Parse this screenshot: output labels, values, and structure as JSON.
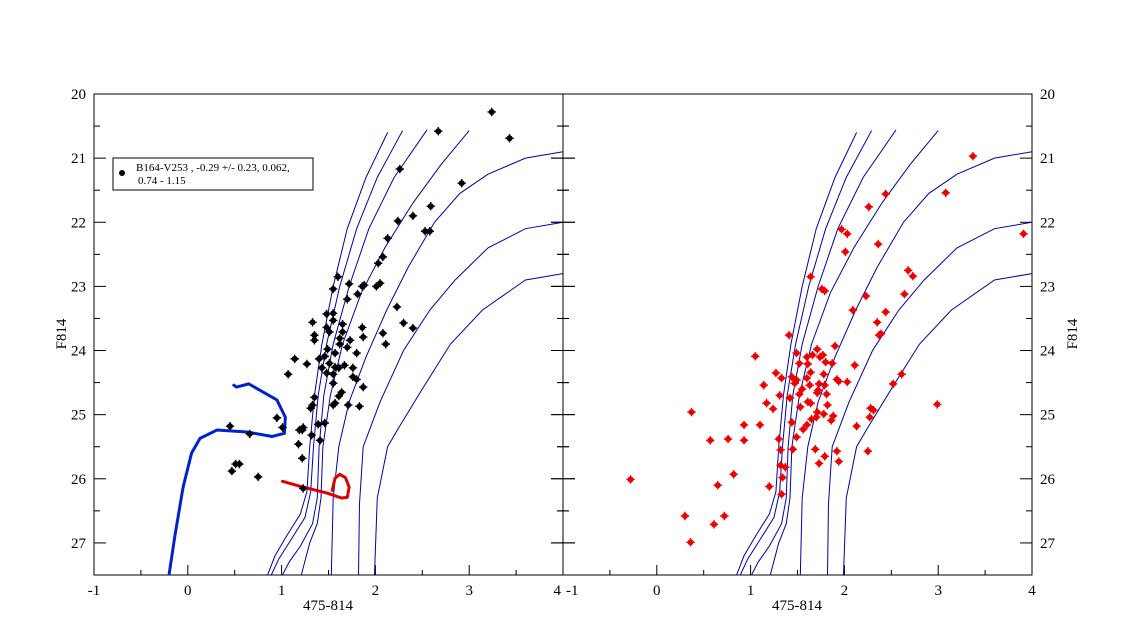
{
  "chart_data": [
    {
      "type": "scatter",
      "panel": "left",
      "xlabel": "475-814",
      "ylabel": "F814",
      "xlim": [
        -1,
        4
      ],
      "ylim": [
        27.5,
        20
      ],
      "y_inverted": true,
      "xticks": [
        "-1",
        "0",
        "1",
        "2",
        "3",
        "4"
      ],
      "yticks": [
        "20",
        "21",
        "22",
        "23",
        "24",
        "25",
        "26",
        "27"
      ],
      "grid": false,
      "legend": {
        "placement": "top-left",
        "line1": "B164-V253  , -0.29 +/- 0.23, 0.062,",
        "line2": "0.74 - 1.15"
      },
      "point_color": "#000000",
      "points": [
        [
          2.08,
          22.54
        ],
        [
          2.03,
          22.64
        ],
        [
          1.6,
          22.85
        ],
        [
          1.72,
          22.96
        ],
        [
          1.55,
          23.04
        ],
        [
          1.86,
          23.0
        ],
        [
          1.88,
          22.98
        ],
        [
          1.81,
          23.12
        ],
        [
          2.05,
          22.95
        ],
        [
          2.01,
          23.0
        ],
        [
          1.7,
          23.2
        ],
        [
          2.23,
          23.32
        ],
        [
          1.48,
          23.43
        ],
        [
          1.55,
          23.42
        ],
        [
          1.55,
          23.53
        ],
        [
          1.33,
          23.56
        ],
        [
          1.65,
          23.59
        ],
        [
          1.48,
          23.64
        ],
        [
          2.3,
          23.57
        ],
        [
          1.86,
          23.64
        ],
        [
          2.4,
          23.65
        ],
        [
          1.51,
          23.71
        ],
        [
          1.65,
          23.71
        ],
        [
          1.35,
          23.76
        ],
        [
          1.35,
          23.84
        ],
        [
          1.62,
          23.81
        ],
        [
          2.08,
          23.73
        ],
        [
          1.87,
          23.79
        ],
        [
          1.73,
          23.84
        ],
        [
          1.62,
          23.9
        ],
        [
          1.7,
          23.95
        ],
        [
          2.11,
          23.9
        ],
        [
          1.49,
          23.98
        ],
        [
          1.57,
          24.04
        ],
        [
          1.8,
          24.04
        ],
        [
          1.14,
          24.13
        ],
        [
          1.4,
          24.13
        ],
        [
          1.46,
          24.09
        ],
        [
          1.27,
          24.21
        ],
        [
          1.51,
          24.2
        ],
        [
          1.57,
          24.26
        ],
        [
          1.61,
          24.27
        ],
        [
          1.67,
          24.23
        ],
        [
          1.43,
          24.27
        ],
        [
          1.76,
          24.27
        ],
        [
          1.07,
          24.37
        ],
        [
          1.48,
          24.35
        ],
        [
          1.55,
          24.37
        ],
        [
          1.76,
          24.41
        ],
        [
          1.8,
          24.45
        ],
        [
          1.55,
          24.51
        ],
        [
          1.87,
          24.57
        ],
        [
          1.64,
          24.65
        ],
        [
          1.61,
          24.71
        ],
        [
          1.35,
          24.73
        ],
        [
          1.33,
          24.85
        ],
        [
          1.31,
          24.9
        ],
        [
          1.55,
          24.85
        ],
        [
          1.57,
          24.82
        ],
        [
          1.71,
          24.85
        ],
        [
          1.83,
          24.87
        ],
        [
          0.95,
          25.05
        ],
        [
          1.01,
          25.2
        ],
        [
          1.23,
          25.2
        ],
        [
          1.19,
          25.24
        ],
        [
          1.39,
          25.15
        ],
        [
          1.46,
          25.13
        ],
        [
          1.32,
          25.32
        ],
        [
          1.41,
          25.4
        ],
        [
          3.24,
          20.28
        ],
        [
          3.43,
          20.69
        ],
        [
          2.67,
          20.58
        ],
        [
          2.26,
          21.17
        ],
        [
          2.92,
          21.39
        ],
        [
          2.59,
          21.75
        ],
        [
          2.4,
          21.9
        ],
        [
          2.53,
          22.14
        ],
        [
          2.58,
          22.14
        ],
        [
          2.24,
          21.98
        ],
        [
          2.13,
          22.25
        ],
        [
          0.45,
          25.18
        ],
        [
          0.51,
          25.77
        ],
        [
          0.47,
          25.88
        ],
        [
          0.55,
          25.77
        ],
        [
          0.75,
          25.97
        ],
        [
          0.66,
          25.3
        ],
        [
          1.23,
          26.15
        ],
        [
          1.22,
          25.68
        ],
        [
          1.18,
          25.46
        ],
        [
          1.22,
          25.24
        ]
      ],
      "tracks": [
        {
          "color": "#0022cc",
          "points": [
            [
              -0.2,
              27.5
            ],
            [
              -0.14,
              26.91
            ],
            [
              -0.05,
              26.13
            ],
            [
              0.04,
              25.6
            ],
            [
              0.13,
              25.37
            ],
            [
              0.31,
              25.24
            ],
            [
              0.63,
              25.27
            ],
            [
              0.9,
              25.34
            ],
            [
              1.03,
              25.29
            ],
            [
              1.04,
              25.04
            ],
            [
              0.95,
              24.77
            ],
            [
              0.77,
              24.62
            ],
            [
              0.65,
              24.52
            ],
            [
              0.52,
              24.57
            ],
            [
              0.49,
              24.54
            ]
          ]
        },
        {
          "color": "#dd0000",
          "points": [
            [
              1.01,
              26.04
            ],
            [
              1.23,
              26.13
            ],
            [
              1.48,
              26.22
            ],
            [
              1.64,
              26.3
            ],
            [
              1.7,
              26.29
            ],
            [
              1.72,
              26.13
            ],
            [
              1.68,
              25.98
            ],
            [
              1.62,
              25.93
            ],
            [
              1.57,
              25.99
            ],
            [
              1.54,
              26.18
            ]
          ]
        }
      ]
    },
    {
      "type": "scatter",
      "panel": "right",
      "xlabel": "475-814",
      "ylabel": "F814",
      "xlim": [
        -1,
        4
      ],
      "ylim": [
        27.5,
        20
      ],
      "y_inverted": true,
      "xticks": [
        "-1",
        "0",
        "1",
        "2",
        "3",
        "4"
      ],
      "yticks": [
        "20",
        "21",
        "22",
        "23",
        "24",
        "25",
        "26",
        "27"
      ],
      "grid": false,
      "point_color": "#ee0000",
      "points": [
        [
          1.05,
          24.09
        ],
        [
          0.37,
          24.96
        ],
        [
          0.93,
          25.16
        ],
        [
          1.1,
          25.16
        ],
        [
          0.57,
          25.4
        ],
        [
          0.76,
          25.38
        ],
        [
          0.93,
          25.4
        ],
        [
          -0.28,
          26.01
        ],
        [
          0.82,
          25.93
        ],
        [
          0.65,
          26.1
        ],
        [
          0.3,
          26.58
        ],
        [
          0.72,
          26.58
        ],
        [
          0.61,
          26.71
        ],
        [
          0.36,
          26.99
        ],
        [
          1.41,
          23.76
        ],
        [
          2.37,
          23.76
        ],
        [
          1.9,
          23.93
        ],
        [
          1.71,
          23.98
        ],
        [
          1.49,
          24.04
        ],
        [
          1.6,
          24.1
        ],
        [
          1.66,
          24.07
        ],
        [
          1.74,
          24.1
        ],
        [
          1.77,
          24.07
        ],
        [
          1.52,
          24.2
        ],
        [
          1.61,
          24.21
        ],
        [
          1.8,
          24.18
        ],
        [
          1.87,
          24.2
        ],
        [
          2.11,
          24.23
        ],
        [
          1.27,
          24.35
        ],
        [
          1.33,
          24.43
        ],
        [
          1.64,
          24.34
        ],
        [
          1.78,
          24.37
        ],
        [
          1.44,
          24.41
        ],
        [
          1.49,
          24.46
        ],
        [
          1.6,
          24.43
        ],
        [
          1.92,
          24.45
        ],
        [
          1.94,
          24.48
        ],
        [
          2.03,
          24.49
        ],
        [
          1.14,
          24.54
        ],
        [
          1.47,
          24.51
        ],
        [
          1.63,
          24.54
        ],
        [
          1.73,
          24.52
        ],
        [
          1.79,
          24.54
        ],
        [
          1.55,
          24.6
        ],
        [
          1.72,
          24.62
        ],
        [
          1.52,
          24.68
        ],
        [
          1.81,
          24.68
        ],
        [
          1.71,
          24.66
        ],
        [
          1.31,
          24.7
        ],
        [
          1.42,
          24.74
        ],
        [
          1.61,
          24.8
        ],
        [
          1.64,
          24.82
        ],
        [
          1.17,
          24.82
        ],
        [
          1.82,
          24.85
        ],
        [
          1.53,
          24.88
        ],
        [
          1.24,
          24.91
        ],
        [
          1.71,
          24.96
        ],
        [
          1.78,
          24.99
        ],
        [
          2.28,
          24.9
        ],
        [
          2.31,
          24.93
        ],
        [
          1.88,
          25.02
        ],
        [
          1.7,
          25.04
        ],
        [
          1.65,
          25.07
        ],
        [
          1.86,
          25.09
        ],
        [
          2.27,
          25.04
        ],
        [
          1.44,
          25.12
        ],
        [
          1.6,
          25.16
        ],
        [
          1.56,
          25.23
        ],
        [
          2.13,
          25.18
        ],
        [
          1.49,
          25.35
        ],
        [
          1.3,
          25.38
        ],
        [
          1.32,
          25.55
        ],
        [
          1.45,
          25.54
        ],
        [
          1.69,
          25.54
        ],
        [
          1.92,
          25.57
        ],
        [
          2.25,
          25.57
        ],
        [
          1.79,
          25.65
        ],
        [
          1.94,
          25.73
        ],
        [
          1.73,
          25.76
        ],
        [
          1.32,
          25.79
        ],
        [
          1.37,
          25.82
        ],
        [
          1.34,
          25.98
        ],
        [
          1.2,
          26.12
        ],
        [
          1.33,
          26.24
        ],
        [
          3.37,
          20.97
        ],
        [
          3.91,
          22.18
        ],
        [
          3.08,
          21.54
        ],
        [
          2.44,
          21.56
        ],
        [
          2.26,
          21.76
        ],
        [
          1.97,
          22.11
        ],
        [
          2.03,
          22.18
        ],
        [
          2.36,
          22.34
        ],
        [
          2.68,
          22.75
        ],
        [
          2.73,
          22.84
        ],
        [
          2.64,
          23.12
        ],
        [
          2.23,
          23.15
        ],
        [
          2.09,
          23.37
        ],
        [
          2.35,
          23.56
        ],
        [
          2.44,
          23.4
        ],
        [
          2.39,
          23.74
        ],
        [
          2.01,
          22.46
        ],
        [
          1.79,
          23.07
        ],
        [
          1.76,
          23.04
        ],
        [
          1.64,
          22.85
        ],
        [
          2.99,
          24.84
        ],
        [
          2.61,
          24.37
        ],
        [
          2.52,
          24.52
        ]
      ],
      "tracks": []
    }
  ],
  "isochrones": {
    "color": "#0000aa",
    "curves": [
      [
        [
          2.13,
          20.6
        ],
        [
          1.9,
          21.3
        ],
        [
          1.7,
          22.1
        ],
        [
          1.55,
          23.0
        ],
        [
          1.43,
          23.9
        ],
        [
          1.35,
          24.7
        ],
        [
          1.3,
          25.5
        ],
        [
          1.27,
          26.2
        ],
        [
          1.2,
          26.55
        ],
        [
          1.05,
          26.9
        ],
        [
          0.93,
          27.2
        ],
        [
          0.85,
          27.5
        ]
      ],
      [
        [
          2.29,
          20.57
        ],
        [
          2.02,
          21.3
        ],
        [
          1.8,
          22.1
        ],
        [
          1.62,
          23.0
        ],
        [
          1.48,
          23.9
        ],
        [
          1.39,
          24.7
        ],
        [
          1.34,
          25.5
        ],
        [
          1.31,
          26.2
        ],
        [
          1.25,
          26.6
        ],
        [
          1.1,
          26.95
        ],
        [
          0.97,
          27.25
        ],
        [
          0.89,
          27.5
        ]
      ],
      [
        [
          2.55,
          20.56
        ],
        [
          2.2,
          21.3
        ],
        [
          1.93,
          22.1
        ],
        [
          1.72,
          23.0
        ],
        [
          1.55,
          23.9
        ],
        [
          1.45,
          24.7
        ],
        [
          1.4,
          25.5
        ],
        [
          1.38,
          26.3
        ],
        [
          1.33,
          26.7
        ],
        [
          1.2,
          27.05
        ],
        [
          1.08,
          27.3
        ],
        [
          1.01,
          27.5
        ]
      ],
      [
        [
          3.0,
          20.57
        ],
        [
          2.7,
          21.1
        ],
        [
          2.4,
          21.7
        ],
        [
          2.1,
          22.4
        ],
        [
          1.85,
          23.1
        ],
        [
          1.65,
          23.9
        ],
        [
          1.52,
          24.7
        ],
        [
          1.44,
          25.5
        ],
        [
          1.42,
          26.3
        ],
        [
          1.38,
          26.7
        ],
        [
          1.3,
          27.0
        ],
        [
          1.21,
          27.5
        ]
      ],
      [
        [
          4.0,
          20.9
        ],
        [
          3.6,
          21.0
        ],
        [
          3.2,
          21.25
        ],
        [
          2.9,
          21.55
        ],
        [
          2.63,
          22.0
        ],
        [
          2.35,
          22.7
        ],
        [
          2.12,
          23.37
        ],
        [
          1.9,
          24.1
        ],
        [
          1.72,
          24.8
        ],
        [
          1.61,
          25.5
        ],
        [
          1.55,
          26.3
        ],
        [
          1.53,
          27.5
        ]
      ],
      [
        [
          4.0,
          22.0
        ],
        [
          3.6,
          22.1
        ],
        [
          3.2,
          22.4
        ],
        [
          2.85,
          22.9
        ],
        [
          2.58,
          23.37
        ],
        [
          2.3,
          24.0
        ],
        [
          2.05,
          24.8
        ],
        [
          1.87,
          25.5
        ],
        [
          1.83,
          26.4
        ],
        [
          1.82,
          27.5
        ]
      ],
      [
        [
          4.0,
          22.8
        ],
        [
          3.6,
          22.9
        ],
        [
          3.14,
          23.37
        ],
        [
          2.8,
          23.9
        ],
        [
          2.5,
          24.6
        ],
        [
          2.25,
          25.2
        ],
        [
          2.13,
          25.5
        ],
        [
          2.02,
          26.3
        ],
        [
          1.99,
          27.5
        ]
      ]
    ]
  }
}
